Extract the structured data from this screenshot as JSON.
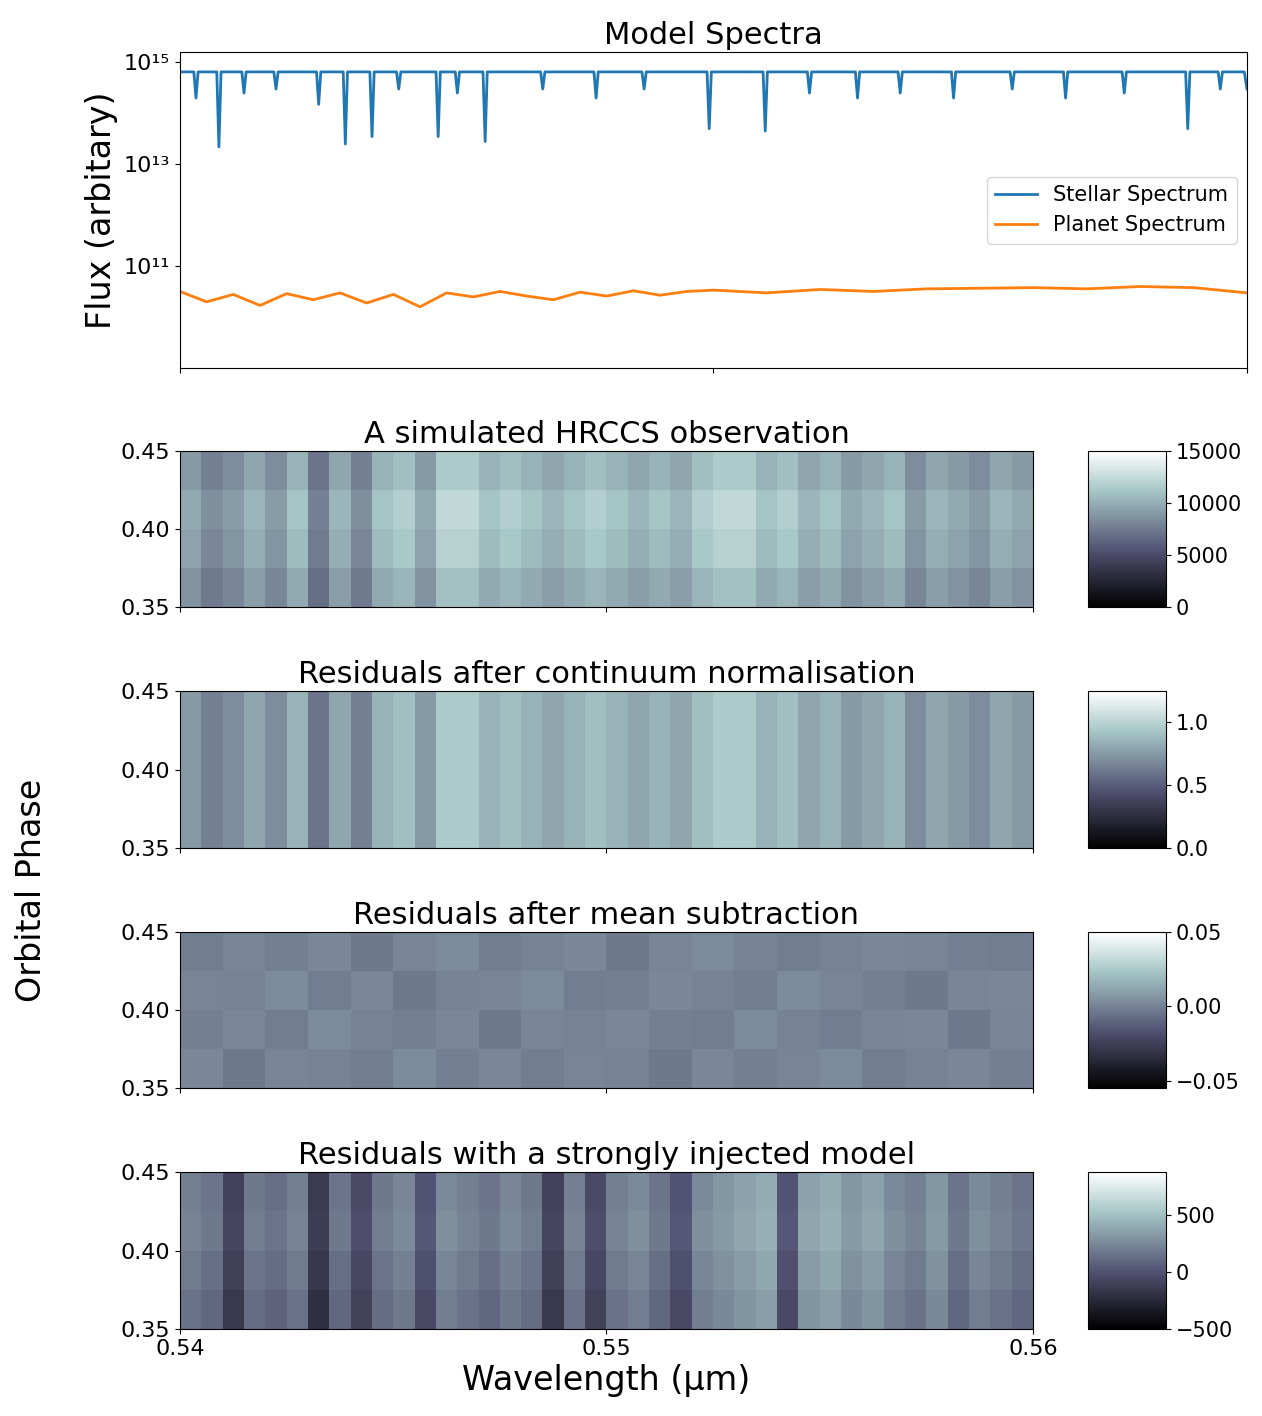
{
  "figure": {
    "ylabel": "Orbital Phase"
  },
  "chart_data": [
    {
      "type": "line",
      "title": "Model Spectra",
      "ylabel": "Flux (arbitary)",
      "log": "y",
      "xlim": [
        0.54,
        0.56
      ],
      "xticks": [
        0.54,
        0.55,
        0.56
      ],
      "ylim": [
        1000000000.0,
        1600000000000000.0
      ],
      "yticks": [
        {
          "value": 100000000000.0,
          "label": "10¹¹"
        },
        {
          "value": 10000000000000.0,
          "label": "10¹³"
        },
        {
          "value": 1000000000000000.0,
          "label": "10¹⁵"
        }
      ],
      "tick_labels": "y",
      "legend": "center right",
      "series": [
        {
          "name": "Stellar Spectrum",
          "color": "#1f77b4",
          "x": [
            0.54,
            0.54026,
            0.5403,
            0.54034,
            0.54069,
            0.54073,
            0.54077,
            0.54116,
            0.5412,
            0.54124,
            0.54176,
            0.5418,
            0.54184,
            0.54256,
            0.5426,
            0.54264,
            0.54306,
            0.5431,
            0.54314,
            0.54356,
            0.5436,
            0.54364,
            0.54406,
            0.5441,
            0.54414,
            0.5448,
            0.54484,
            0.54488,
            0.54516,
            0.5452,
            0.54524,
            0.54568,
            0.54572,
            0.54576,
            0.54676,
            0.5468,
            0.54684,
            0.54776,
            0.5478,
            0.54784,
            0.54866,
            0.5487,
            0.54874,
            0.54988,
            0.54992,
            0.54996,
            0.55093,
            0.55097,
            0.55101,
            0.55176,
            0.5518,
            0.55184,
            0.55266,
            0.5527,
            0.55274,
            0.55346,
            0.5535,
            0.55354,
            0.55446,
            0.5545,
            0.55454,
            0.55556,
            0.5556,
            0.55564,
            0.55656,
            0.5566,
            0.55664,
            0.55766,
            0.5577,
            0.55774,
            0.55885,
            0.55889,
            0.55893,
            0.55946,
            0.5595,
            0.55954,
            0.55995,
            0.56
          ],
          "values": [
            650000000000000.0,
            650000000000000.0,
            200000000000000.0,
            650000000000000.0,
            650000000000000.0,
            22000000000000.0,
            650000000000000.0,
            650000000000000.0,
            250000000000000.0,
            650000000000000.0,
            650000000000000.0,
            300000000000000.0,
            650000000000000.0,
            650000000000000.0,
            150000000000000.0,
            650000000000000.0,
            650000000000000.0,
            25000000000000.0,
            650000000000000.0,
            650000000000000.0,
            35000000000000.0,
            650000000000000.0,
            650000000000000.0,
            300000000000000.0,
            650000000000000.0,
            650000000000000.0,
            35000000000000.0,
            650000000000000.0,
            650000000000000.0,
            250000000000000.0,
            650000000000000.0,
            650000000000000.0,
            28000000000000.0,
            650000000000000.0,
            650000000000000.0,
            300000000000000.0,
            650000000000000.0,
            650000000000000.0,
            200000000000000.0,
            650000000000000.0,
            650000000000000.0,
            300000000000000.0,
            650000000000000.0,
            650000000000000.0,
            50000000000000.0,
            650000000000000.0,
            650000000000000.0,
            45000000000000.0,
            650000000000000.0,
            650000000000000.0,
            250000000000000.0,
            650000000000000.0,
            650000000000000.0,
            200000000000000.0,
            650000000000000.0,
            650000000000000.0,
            250000000000000.0,
            650000000000000.0,
            650000000000000.0,
            200000000000000.0,
            650000000000000.0,
            650000000000000.0,
            300000000000000.0,
            650000000000000.0,
            650000000000000.0,
            200000000000000.0,
            650000000000000.0,
            650000000000000.0,
            250000000000000.0,
            650000000000000.0,
            650000000000000.0,
            50000000000000.0,
            650000000000000.0,
            650000000000000.0,
            300000000000000.0,
            650000000000000.0,
            650000000000000.0,
            300000000000000.0
          ]
        },
        {
          "name": "Planet Spectrum",
          "color": "#ff7f0e",
          "x": [
            0.54,
            0.5405,
            0.541,
            0.5415,
            0.542,
            0.5425,
            0.543,
            0.5435,
            0.544,
            0.5445,
            0.545,
            0.5455,
            0.546,
            0.5465,
            0.547,
            0.5475,
            0.548,
            0.5485,
            0.549,
            0.5495,
            0.55,
            0.551,
            0.552,
            0.553,
            0.554,
            0.555,
            0.556,
            0.557,
            0.558,
            0.559,
            0.56
          ],
          "values": [
            32000000000.0,
            20000000000.0,
            28000000000.0,
            17000000000.0,
            29000000000.0,
            22000000000.0,
            30000000000.0,
            19000000000.0,
            28000000000.0,
            16000000000.0,
            30000000000.0,
            25000000000.0,
            32000000000.0,
            26000000000.0,
            22000000000.0,
            31000000000.0,
            26000000000.0,
            33000000000.0,
            27000000000.0,
            32000000000.0,
            34000000000.0,
            30000000000.0,
            35000000000.0,
            32000000000.0,
            36000000000.0,
            37000000000.0,
            38000000000.0,
            36000000000.0,
            40000000000.0,
            38000000000.0,
            30000000000.0
          ]
        }
      ]
    },
    {
      "type": "heatmap",
      "title": "A simulated HRCCS observation",
      "xlim": [
        0.54,
        0.56
      ],
      "xticks": [
        0.54,
        0.55,
        0.56
      ],
      "ylim": [
        0.35,
        0.45
      ],
      "yticks": [
        0.35,
        {
          "value": 0.4,
          "label": "0.40"
        },
        0.45
      ],
      "tick_labels": "y",
      "x_edges": [
        0.54,
        0.5405,
        0.541,
        0.5415,
        0.542,
        0.5425,
        0.543,
        0.5435,
        0.544,
        0.5445,
        0.545,
        0.5455,
        0.546,
        0.5465,
        0.547,
        0.5475,
        0.548,
        0.5485,
        0.549,
        0.5495,
        0.55,
        0.5505,
        0.551,
        0.5515,
        0.552,
        0.5525,
        0.553,
        0.5535,
        0.554,
        0.5545,
        0.555,
        0.5555,
        0.556,
        0.5565,
        0.557,
        0.5575,
        0.558,
        0.5585,
        0.559,
        0.5595,
        0.56
      ],
      "y_edges": [
        0.35,
        0.375,
        0.4,
        0.425,
        0.45
      ],
      "cells": [
        [
          8625,
          7475,
          8050,
          9200,
          8050,
          9775,
          6900,
          9200,
          7475,
          9775,
          10350,
          8625,
          10925,
          10925,
          9775,
          10350,
          9775,
          9200,
          9775,
          10350,
          9775,
          9200,
          9775,
          9200,
          10350,
          10925,
          10925,
          9775,
          10350,
          9200,
          9775,
          8625,
          9200,
          9775,
          8050,
          9200,
          8625,
          8050,
          9200,
          8625
        ],
        [
          9375,
          8125,
          8750,
          10000,
          8750,
          10625,
          7500,
          10000,
          8125,
          10625,
          11250,
          9375,
          11875,
          11875,
          10625,
          11250,
          10625,
          10000,
          10625,
          11250,
          10625,
          10000,
          10625,
          10000,
          11250,
          11875,
          11875,
          10625,
          11250,
          10000,
          10625,
          9375,
          10000,
          10625,
          8750,
          10000,
          9375,
          8750,
          10000,
          9375
        ],
        [
          9750,
          8450,
          9100,
          10400,
          9100,
          11050,
          7800,
          10400,
          8450,
          11050,
          11700,
          9750,
          12350,
          12350,
          11050,
          11700,
          11050,
          10400,
          11050,
          11700,
          11050,
          10400,
          11050,
          10400,
          11700,
          12350,
          12350,
          11050,
          11700,
          10400,
          11050,
          9750,
          10400,
          11050,
          9100,
          10400,
          9750,
          9100,
          10400,
          9750
        ],
        [
          9000,
          7800,
          8400,
          9600,
          8400,
          10200,
          7200,
          9600,
          7800,
          10200,
          10800,
          9000,
          11400,
          11400,
          10200,
          10800,
          10200,
          9600,
          10200,
          10800,
          10200,
          9600,
          10200,
          9600,
          10800,
          11400,
          11400,
          10200,
          10800,
          9600,
          10200,
          9000,
          9600,
          10200,
          8400,
          9600,
          9000,
          8400,
          9600,
          9000
        ]
      ],
      "colorbar": {
        "range": [
          0,
          15000
        ],
        "ticks": [
          0,
          5000,
          10000,
          15000
        ]
      }
    },
    {
      "type": "heatmap",
      "title": "Residuals after continuum normalisation",
      "xlim": [
        0.54,
        0.56
      ],
      "xticks": [
        0.54,
        0.55,
        0.56
      ],
      "ylim": [
        0.35,
        0.45
      ],
      "yticks": [
        0.35,
        {
          "value": 0.4,
          "label": "0.40"
        },
        0.45
      ],
      "tick_labels": "y",
      "x_edges": [
        0.54,
        0.5405,
        0.541,
        0.5415,
        0.542,
        0.5425,
        0.543,
        0.5435,
        0.544,
        0.5445,
        0.545,
        0.5455,
        0.546,
        0.5465,
        0.547,
        0.5475,
        0.548,
        0.5485,
        0.549,
        0.5495,
        0.55,
        0.5505,
        0.551,
        0.5515,
        0.552,
        0.5525,
        0.553,
        0.5535,
        0.554,
        0.5545,
        0.555,
        0.5555,
        0.556,
        0.5565,
        0.557,
        0.5575,
        0.558,
        0.5585,
        0.559,
        0.5595,
        0.56
      ],
      "y_edges": [
        0.35,
        0.45
      ],
      "cells": [
        [
          0.75,
          0.65,
          0.7,
          0.8,
          0.7,
          0.85,
          0.6,
          0.8,
          0.65,
          0.85,
          0.9,
          0.75,
          0.95,
          0.95,
          0.85,
          0.9,
          0.85,
          0.8,
          0.85,
          0.9,
          0.85,
          0.8,
          0.85,
          0.8,
          0.9,
          0.95,
          0.95,
          0.85,
          0.9,
          0.8,
          0.85,
          0.75,
          0.8,
          0.85,
          0.7,
          0.8,
          0.75,
          0.7,
          0.8,
          0.75
        ]
      ],
      "colorbar": {
        "range": [
          0,
          1.25
        ],
        "ticks": [
          {
            "value": 0,
            "label": "0.0"
          },
          0.5,
          {
            "value": 1,
            "label": "1.0"
          }
        ]
      }
    },
    {
      "type": "heatmap",
      "title": "Residuals after mean subtraction",
      "xlim": [
        0.54,
        0.56
      ],
      "xticks": [
        0.54,
        0.55,
        0.56
      ],
      "ylim": [
        0.35,
        0.45
      ],
      "yticks": [
        0.35,
        {
          "value": 0.4,
          "label": "0.40"
        },
        0.45
      ],
      "tick_labels": "y",
      "x_edges": [
        0.54,
        0.541,
        0.542,
        0.543,
        0.544,
        0.545,
        0.546,
        0.547,
        0.548,
        0.549,
        0.55,
        0.551,
        0.552,
        0.553,
        0.554,
        0.555,
        0.556,
        0.557,
        0.558,
        0.559,
        0.56
      ],
      "y_edges": [
        0.35,
        0.375,
        0.4,
        0.425,
        0.45
      ],
      "cells": [
        [
          0.002,
          -0.003,
          0.001,
          0.0,
          -0.002,
          0.003,
          -0.001,
          0.002,
          -0.002,
          0.001,
          0.0,
          -0.003,
          0.002,
          -0.001,
          0.001,
          0.003,
          -0.002,
          0.0,
          0.002,
          -0.001
        ],
        [
          -0.001,
          0.002,
          -0.002,
          0.003,
          0.0,
          -0.001,
          0.002,
          -0.003,
          0.001,
          0.0,
          0.002,
          -0.001,
          -0.002,
          0.003,
          0.0,
          -0.002,
          0.001,
          0.002,
          -0.003,
          0.001
        ],
        [
          0.001,
          0.0,
          0.003,
          -0.002,
          0.002,
          -0.003,
          0.0,
          0.001,
          0.003,
          -0.002,
          -0.001,
          0.002,
          0.0,
          -0.002,
          0.003,
          0.001,
          -0.001,
          -0.003,
          0.001,
          0.002
        ],
        [
          -0.002,
          0.001,
          -0.001,
          0.002,
          -0.003,
          0.001,
          0.003,
          -0.002,
          0.0,
          0.002,
          -0.003,
          0.001,
          0.003,
          0.0,
          -0.002,
          0.0,
          0.002,
          0.001,
          -0.001,
          -0.002
        ]
      ],
      "colorbar": {
        "range": [
          -0.055,
          0.05
        ],
        "ticks": [
          {
            "value": -0.05,
            "label": "−0.05"
          },
          {
            "value": 0,
            "label": "0.00"
          },
          0.05
        ]
      }
    },
    {
      "type": "heatmap",
      "title": "Residuals with a strongly injected model",
      "xlabel": "Wavelength (μm)",
      "xlim": [
        0.54,
        0.56
      ],
      "xticks": [
        0.54,
        0.55,
        0.56
      ],
      "ylim": [
        0.35,
        0.45
      ],
      "yticks": [
        0.35,
        {
          "value": 0.4,
          "label": "0.40"
        },
        0.45
      ],
      "x_edges": [
        0.54,
        0.5405,
        0.541,
        0.5415,
        0.542,
        0.5425,
        0.543,
        0.5435,
        0.544,
        0.5445,
        0.545,
        0.5455,
        0.546,
        0.5465,
        0.547,
        0.5475,
        0.548,
        0.5485,
        0.549,
        0.5495,
        0.55,
        0.5505,
        0.551,
        0.5515,
        0.552,
        0.5525,
        0.553,
        0.5535,
        0.554,
        0.5545,
        0.555,
        0.5555,
        0.556,
        0.5565,
        0.557,
        0.5575,
        0.558,
        0.5585,
        0.559,
        0.5595,
        0.56
      ],
      "y_edges": [
        0.35,
        0.375,
        0.4,
        0.425,
        0.45
      ],
      "cells": [
        [
          150,
          100,
          -150,
          120,
          80,
          150,
          -200,
          100,
          -100,
          120,
          180,
          -50,
          200,
          150,
          100,
          180,
          120,
          -150,
          150,
          -100,
          150,
          200,
          100,
          -50,
          200,
          250,
          300,
          350,
          -50,
          300,
          350,
          250,
          300,
          200,
          150,
          250,
          100,
          200,
          150,
          100
        ],
        [
          190,
          140,
          -110,
          160,
          120,
          190,
          -160,
          140,
          -60,
          160,
          220,
          -10,
          240,
          190,
          140,
          220,
          160,
          -110,
          190,
          -60,
          190,
          240,
          140,
          -10,
          240,
          290,
          340,
          390,
          -10,
          340,
          390,
          290,
          340,
          240,
          190,
          290,
          140,
          240,
          190,
          140
        ],
        [
          230,
          180,
          -70,
          200,
          160,
          230,
          -120,
          180,
          -20,
          200,
          260,
          30,
          280,
          230,
          180,
          260,
          200,
          -70,
          230,
          -20,
          230,
          280,
          180,
          30,
          280,
          330,
          380,
          430,
          30,
          380,
          430,
          330,
          380,
          280,
          230,
          330,
          180,
          280,
          230,
          180
        ],
        [
          210,
          160,
          -90,
          180,
          140,
          210,
          -140,
          160,
          -40,
          180,
          240,
          10,
          260,
          210,
          160,
          240,
          180,
          -90,
          210,
          -40,
          210,
          260,
          160,
          10,
          260,
          310,
          360,
          410,
          10,
          360,
          410,
          310,
          360,
          260,
          210,
          310,
          160,
          260,
          210,
          160
        ]
      ],
      "colorbar": {
        "range": [
          -500,
          880
        ],
        "ticks": [
          {
            "value": -500,
            "label": "−500"
          },
          0,
          500
        ]
      }
    }
  ]
}
